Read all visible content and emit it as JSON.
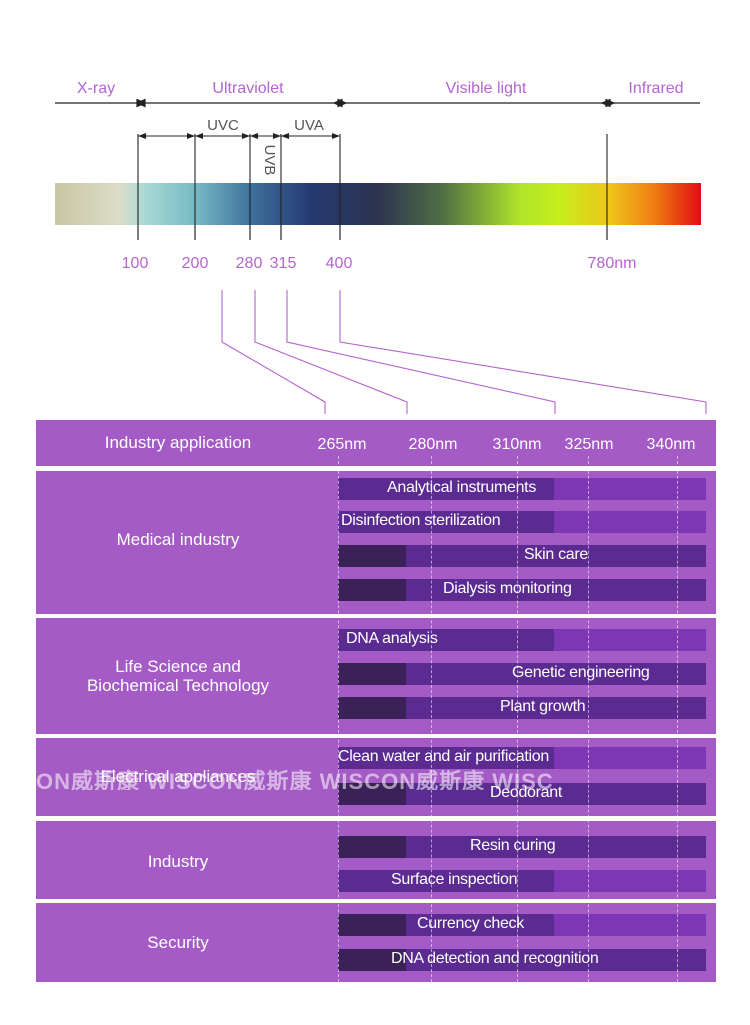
{
  "spectrum": {
    "bands": [
      {
        "label": "X-ray"
      },
      {
        "label": "Ultraviolet"
      },
      {
        "label": "Visible light"
      },
      {
        "label": "Infrared"
      }
    ],
    "subbands": [
      {
        "label": "UVC"
      },
      {
        "label": "UVB"
      },
      {
        "label": "UVA"
      }
    ],
    "ticks": [
      "100",
      "200",
      "280",
      "315",
      "400",
      "780nm"
    ],
    "colors": [
      "#c8c6a4",
      "#84c9c6",
      "#3c6c98",
      "#253870",
      "#2d3450",
      "#c5ee1b",
      "#f1a014",
      "#e20b14"
    ]
  },
  "table": {
    "header_label": "Industry application",
    "wavelengths": [
      "265nm",
      "280nm",
      "310nm",
      "325nm",
      "340nm"
    ],
    "sections": [
      {
        "label": [
          "Medical industry"
        ],
        "rows": [
          {
            "text": "Analytical instruments"
          },
          {
            "text": "Disinfection sterilization"
          },
          {
            "text": "Skin care"
          },
          {
            "text": "Dialysis monitoring"
          }
        ]
      },
      {
        "label": [
          "Life Science and",
          "Biochemical Technology"
        ],
        "rows": [
          {
            "text": "DNA analysis"
          },
          {
            "text": "Genetic engineering"
          },
          {
            "text": "Plant growth"
          }
        ]
      },
      {
        "label": [
          "Electrical appliances"
        ],
        "rows": [
          {
            "text": "Clean water and air purification"
          },
          {
            "text": "Deodorant"
          }
        ]
      },
      {
        "label": [
          "Industry"
        ],
        "rows": [
          {
            "text": "Resin curing"
          },
          {
            "text": "Surface inspection"
          }
        ]
      },
      {
        "label": [
          "Security"
        ],
        "rows": [
          {
            "text": "Currency check"
          },
          {
            "text": "DNA detection and recognition"
          }
        ]
      }
    ],
    "colors": {
      "section_bg": "#a45bc5",
      "bar_dark": "#3a2158",
      "bar_mid": "#5b2b92",
      "bar_light": "#7e37b4"
    }
  },
  "watermark": {
    "text": "ON威斯康  WISCON威斯康  WISCON威斯康  WISC"
  }
}
